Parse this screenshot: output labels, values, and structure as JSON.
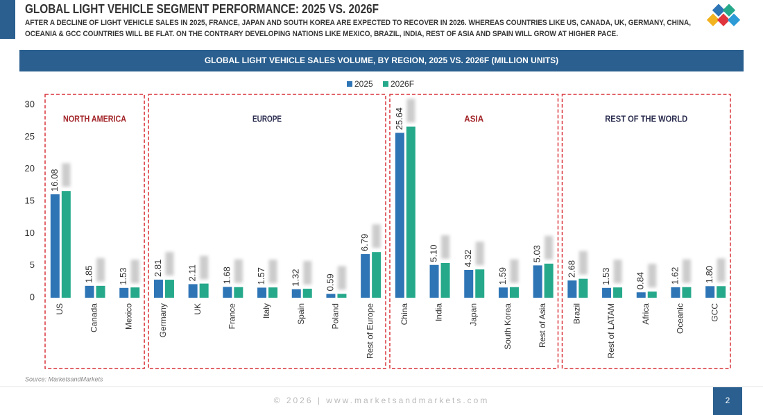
{
  "header": {
    "title": "GLOBAL LIGHT VEHICLE SEGMENT PERFORMANCE: 2025 VS. 2026F",
    "subtitle": [
      "AFTER A DECLINE OF LIGHT VEHICLE SALES IN 2025, FRANCE, JAPAN AND SOUTH KOREA ARE EXPECTED TO RECOVER IN 2026. WHEREAS COUNTRIES LIKE US, CANADA, UK, GERMANY, CHINA,",
      "OCEANIA & GCC COUNTRIES WILL BE FLAT. ON THE CONTRARY DEVELOPING NATIONS LIKE MEXICO, BRAZIL, INDIA, REST OF ASIA AND SPAIN WILL GROW AT HIGHER PACE."
    ]
  },
  "chart_data": {
    "type": "bar",
    "title": "GLOBAL LIGHT VEHICLE SALES VOLUME, BY REGION, 2025 VS. 2026F (MILLION UNITS)",
    "groups": [
      {
        "name": "NORTH AMERICA",
        "color": "#a3262a",
        "categories": [
          "US",
          "Canada",
          "Mexico"
        ]
      },
      {
        "name": "EUROPE",
        "color": "#2b2d4f",
        "categories": [
          "Germany",
          "UK",
          "France",
          "Italy",
          "Spain",
          "Poland",
          "Rest of Europe"
        ]
      },
      {
        "name": "ASIA",
        "color": "#a3262a",
        "categories": [
          "China",
          "India",
          "Japan",
          "South Korea",
          "Rest of Asia"
        ]
      },
      {
        "name": "REST OF THE WORLD",
        "color": "#2b2d4f",
        "categories": [
          "Brazil",
          "Rest of LATAM",
          "Africa",
          "Oceanic",
          "GCC"
        ]
      }
    ],
    "series": [
      {
        "name": "2025",
        "color": "#2e75b6",
        "values": [
          16.08,
          1.85,
          1.53,
          2.81,
          2.11,
          1.68,
          1.57,
          1.32,
          0.59,
          6.79,
          25.64,
          5.1,
          4.32,
          1.59,
          5.03,
          2.68,
          1.53,
          0.84,
          1.62,
          1.8
        ],
        "value_labels": [
          "16.08",
          "1.85",
          "1.53",
          "2.81",
          "2.11",
          "1.68",
          "1.57",
          "1.32",
          "0.59",
          "6.79",
          "25.64",
          "5.10",
          "4.32",
          "1.59",
          "5.03",
          "2.68",
          "1.53",
          "0.84",
          "1.62",
          "1.80"
        ]
      },
      {
        "name": "2026F",
        "color": "#26a98b",
        "values": [
          16.6,
          1.85,
          1.6,
          2.8,
          2.2,
          1.65,
          1.6,
          1.4,
          0.6,
          7.1,
          26.6,
          5.4,
          4.4,
          1.65,
          5.3,
          2.95,
          1.6,
          0.95,
          1.65,
          1.8
        ]
      }
    ],
    "ylim": [
      0,
      30
    ],
    "yticks": [
      0,
      5,
      10,
      15,
      20,
      25,
      30
    ],
    "grid": false,
    "legend": "top"
  },
  "source": "Source: MarketsandMarkets",
  "footer": "© 2026 | www.marketsandmarkets.com",
  "page_number": "2"
}
